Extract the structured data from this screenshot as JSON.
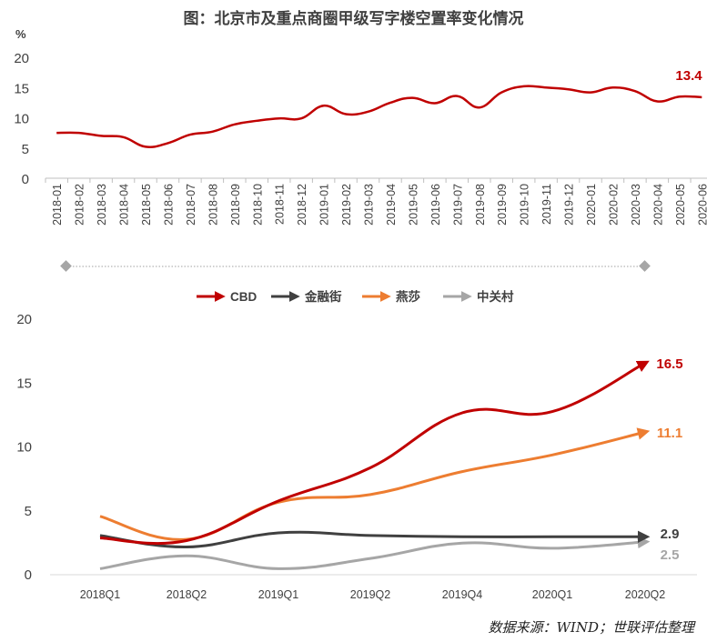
{
  "title": "图：北京市及重点商圈甲级写字楼空置率变化情况",
  "source": "数据来源：WIND；世联评估整理",
  "chart_data": [
    {
      "type": "line",
      "unit_label": "%",
      "ylim": [
        0,
        20
      ],
      "y_ticks": [
        0,
        5,
        10,
        15,
        20
      ],
      "grid": false,
      "categories": [
        "2018-01",
        "2018-02",
        "2018-03",
        "2018-04",
        "2018-05",
        "2018-06",
        "2018-07",
        "2018-08",
        "2018-09",
        "2018-10",
        "2018-11",
        "2018-12",
        "2019-01",
        "2019-02",
        "2019-03",
        "2019-04",
        "2019-05",
        "2019-06",
        "2019-07",
        "2019-08",
        "2019-09",
        "2019-10",
        "2019-11",
        "2019-12",
        "2020-01",
        "2020-02",
        "2020-03",
        "2020-04",
        "2020-05",
        "2020-06"
      ],
      "series": [
        {
          "color": "#C00000",
          "values": [
            7.5,
            7.5,
            7.0,
            6.8,
            5.2,
            5.8,
            7.2,
            7.7,
            8.9,
            9.5,
            9.9,
            9.9,
            12.0,
            10.6,
            11.0,
            12.5,
            13.3,
            12.4,
            13.6,
            11.7,
            14.2,
            15.2,
            15.0,
            14.7,
            14.2,
            15.0,
            14.4,
            12.7,
            13.5,
            13.4
          ]
        }
      ],
      "end_label": "13.4"
    },
    {
      "type": "line",
      "ylim": [
        0,
        20
      ],
      "y_ticks": [
        0,
        5,
        10,
        15,
        20
      ],
      "grid": false,
      "legend_position": "top",
      "categories": [
        "2018Q1",
        "2018Q2",
        "2019Q1",
        "2019Q2",
        "2019Q4",
        "2020Q1",
        "2020Q2"
      ],
      "series": [
        {
          "name": "CBD",
          "color": "#C00000",
          "values": [
            2.8,
            2.6,
            5.7,
            8.3,
            12.6,
            12.7,
            16.5
          ],
          "end_label": "16.5"
        },
        {
          "name": "金融街",
          "color": "#404040",
          "values": [
            3.0,
            2.1,
            3.2,
            3.0,
            2.9,
            2.9,
            2.9
          ],
          "end_label": "2.9"
        },
        {
          "name": "燕莎",
          "color": "#ED7D31",
          "values": [
            4.5,
            2.7,
            5.6,
            6.2,
            8.0,
            9.3,
            11.1
          ],
          "end_label": "11.1"
        },
        {
          "name": "中关村",
          "color": "#A6A6A6",
          "values": [
            0.4,
            1.4,
            0.4,
            1.2,
            2.4,
            2.0,
            2.5
          ],
          "end_label": "2.5"
        }
      ]
    }
  ]
}
